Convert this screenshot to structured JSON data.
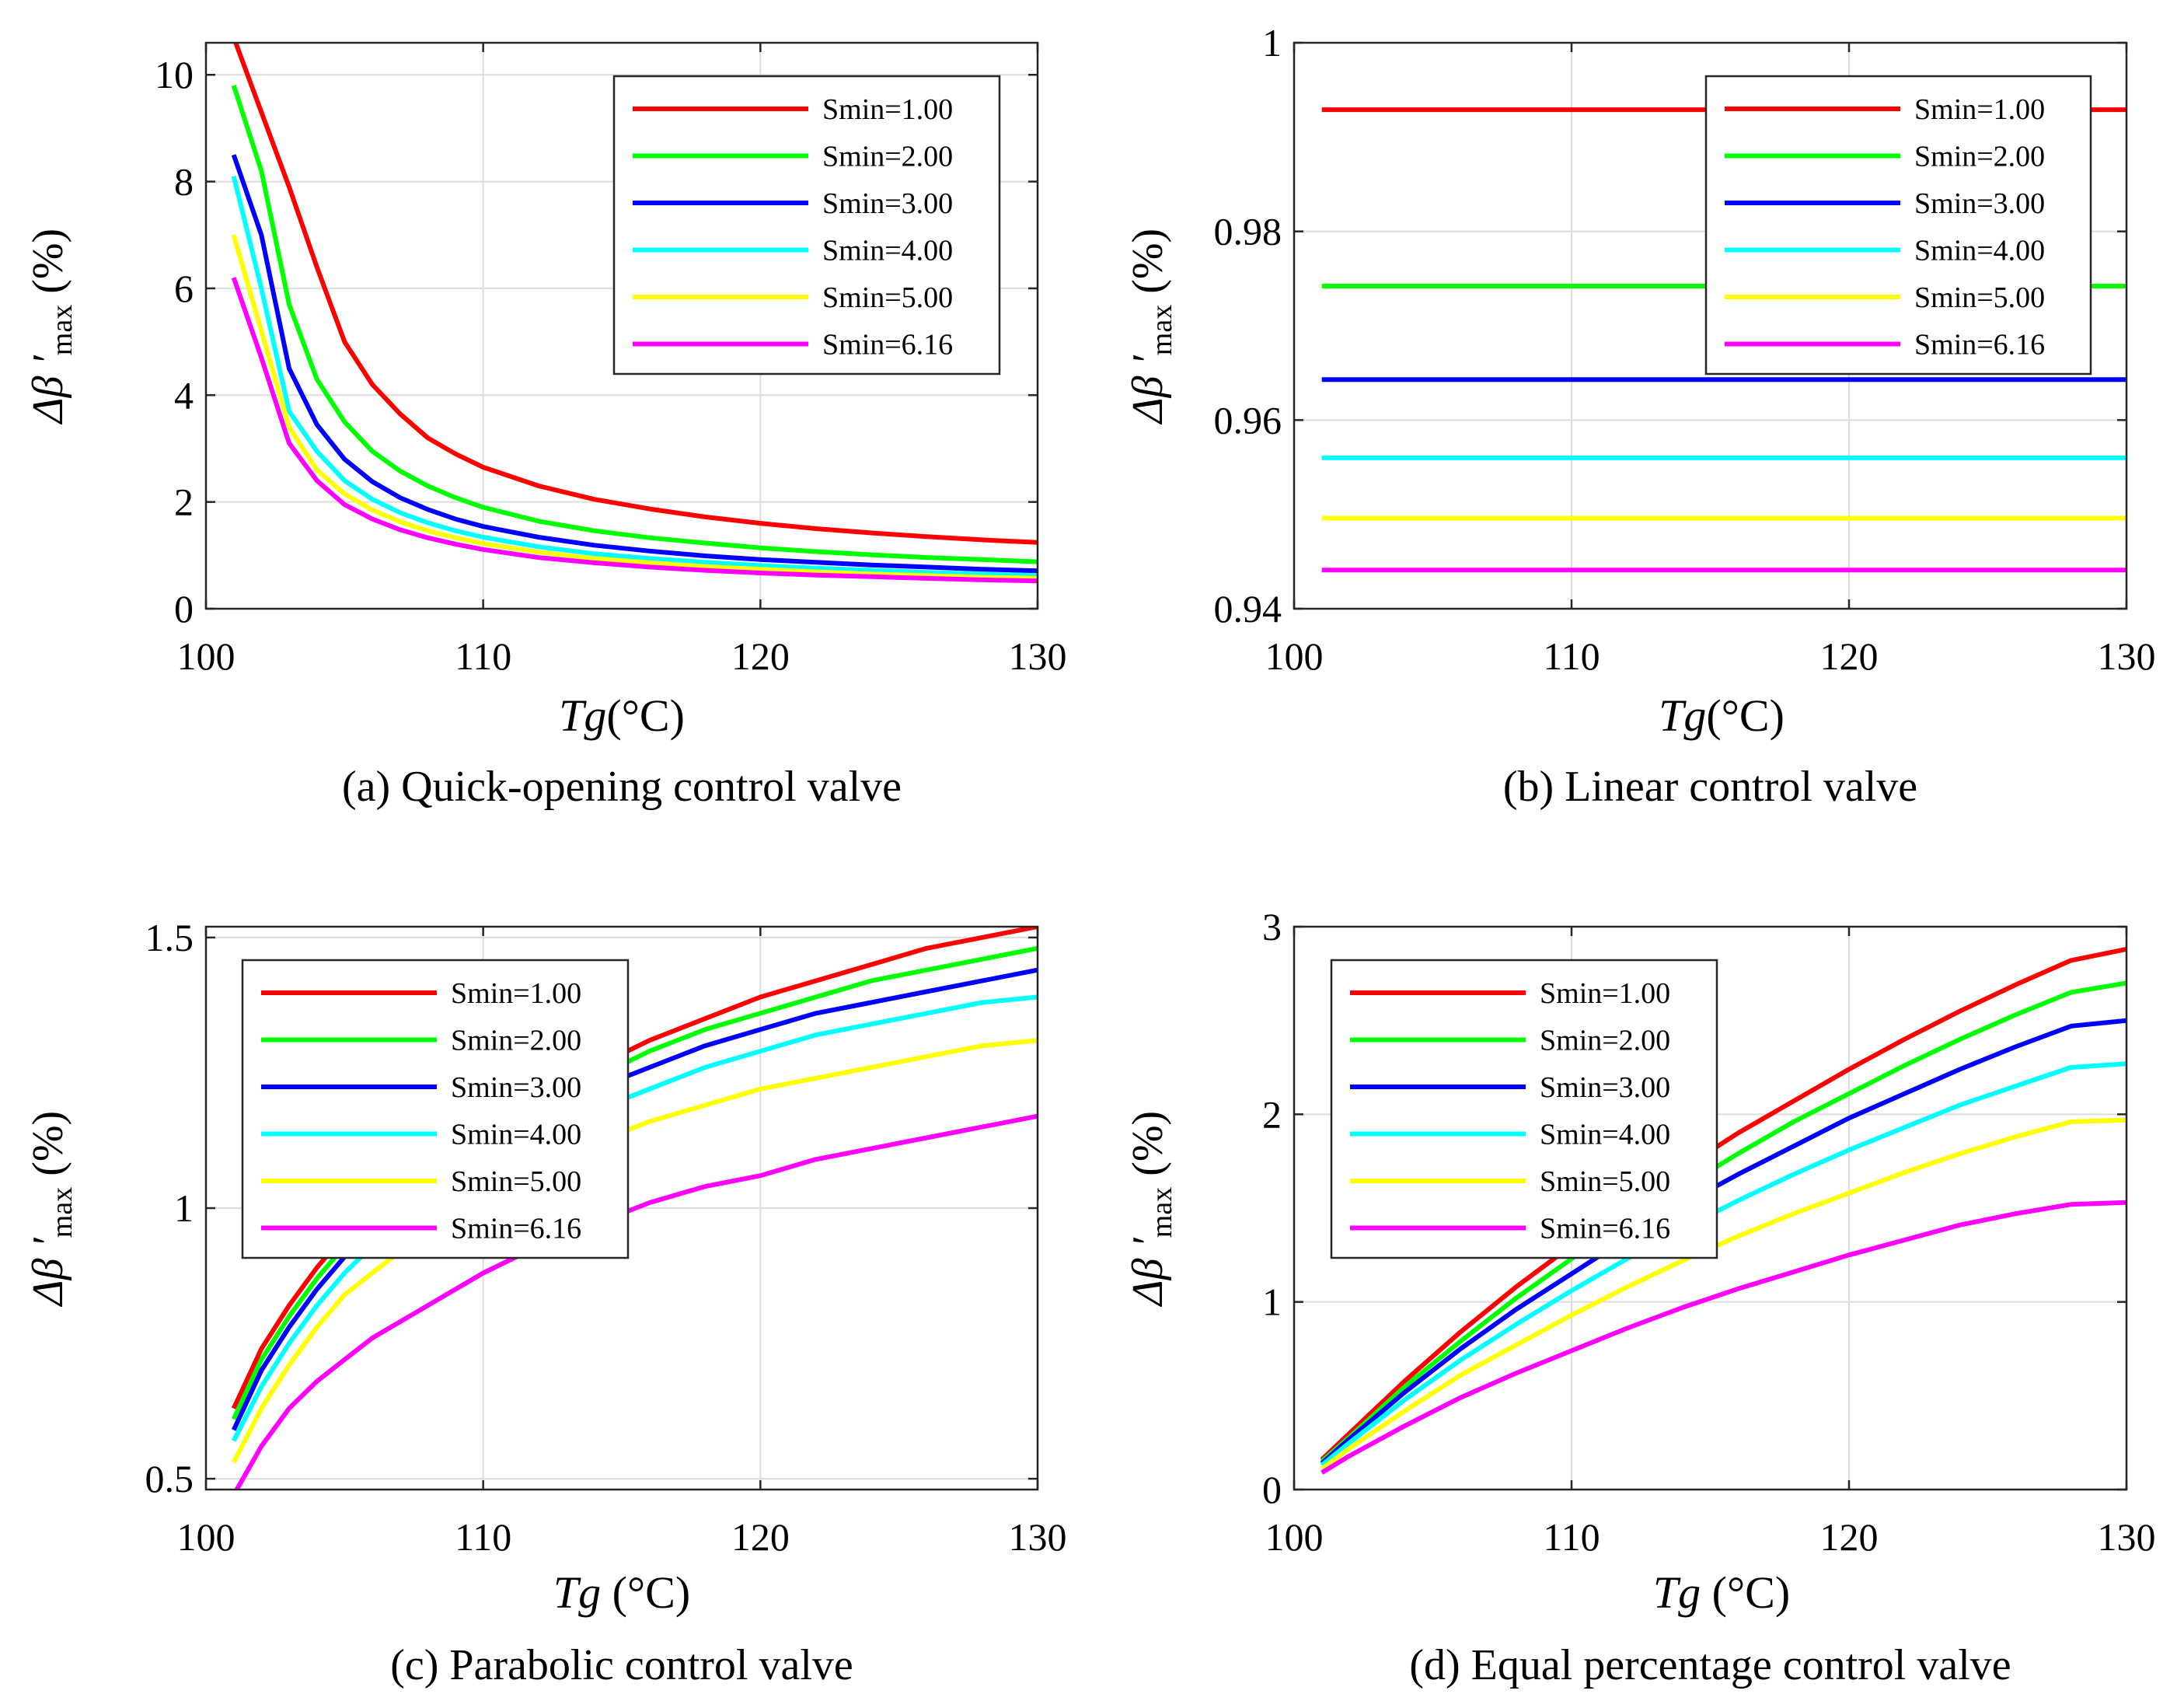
{
  "chart_data": [
    {
      "id": "a",
      "type": "line",
      "caption": "(a) Quick-opening control valve",
      "xlabel_var": "Tg",
      "xlabel_unit": "(°C)",
      "ylabel_main": "Δβ ′",
      "ylabel_sub": "max",
      "ylabel_unit": "(%)",
      "xlim": [
        100,
        130
      ],
      "ylim": [
        0,
        10.6
      ],
      "xticks": [
        100,
        110,
        120,
        130
      ],
      "yticks": [
        0,
        2,
        4,
        6,
        8,
        10
      ],
      "ytick_labels": [
        "0",
        "2",
        "4",
        "6",
        "8",
        "10"
      ],
      "grid": true,
      "legend_position": "top-right",
      "x": [
        101,
        102,
        103,
        104,
        105,
        106,
        107,
        108,
        109,
        110,
        112,
        114,
        116,
        118,
        120,
        122,
        124,
        126,
        128,
        130
      ],
      "series": [
        {
          "name": "Smin=1.00",
          "color": "#ff0000",
          "values": [
            10.7,
            9.3,
            7.9,
            6.4,
            5.0,
            4.2,
            3.65,
            3.2,
            2.9,
            2.65,
            2.3,
            2.05,
            1.87,
            1.72,
            1.6,
            1.5,
            1.42,
            1.35,
            1.29,
            1.24
          ]
        },
        {
          "name": "Smin=2.00",
          "color": "#00ff00",
          "values": [
            9.8,
            8.2,
            5.7,
            4.3,
            3.5,
            2.95,
            2.58,
            2.3,
            2.08,
            1.9,
            1.64,
            1.46,
            1.33,
            1.23,
            1.14,
            1.07,
            1.01,
            0.96,
            0.92,
            0.88
          ]
        },
        {
          "name": "Smin=3.00",
          "color": "#0000ff",
          "values": [
            8.5,
            7.0,
            4.5,
            3.45,
            2.8,
            2.38,
            2.08,
            1.86,
            1.68,
            1.54,
            1.34,
            1.19,
            1.08,
            0.99,
            0.92,
            0.87,
            0.82,
            0.78,
            0.74,
            0.71
          ]
        },
        {
          "name": "Smin=4.00",
          "color": "#00ffff",
          "values": [
            8.1,
            6.0,
            3.7,
            2.95,
            2.4,
            2.05,
            1.8,
            1.61,
            1.46,
            1.34,
            1.16,
            1.03,
            0.94,
            0.87,
            0.81,
            0.76,
            0.72,
            0.68,
            0.65,
            0.62
          ]
        },
        {
          "name": "Smin=5.00",
          "color": "#ffff00",
          "values": [
            7.0,
            5.2,
            3.4,
            2.6,
            2.15,
            1.85,
            1.63,
            1.46,
            1.33,
            1.22,
            1.06,
            0.94,
            0.86,
            0.79,
            0.74,
            0.69,
            0.65,
            0.62,
            0.59,
            0.57
          ]
        },
        {
          "name": "Smin=6.16",
          "color": "#ff00ff",
          "values": [
            6.2,
            4.7,
            3.1,
            2.4,
            1.95,
            1.68,
            1.48,
            1.33,
            1.21,
            1.11,
            0.96,
            0.86,
            0.78,
            0.72,
            0.67,
            0.63,
            0.6,
            0.57,
            0.54,
            0.52
          ]
        }
      ]
    },
    {
      "id": "b",
      "type": "line",
      "caption": "(b) Linear control valve",
      "xlabel_var": "Tg",
      "xlabel_unit": "(°C)",
      "ylabel_main": "Δβ ′",
      "ylabel_sub": "max",
      "ylabel_unit": "(%)",
      "xlim": [
        100,
        130
      ],
      "ylim": [
        0.94,
        1.0
      ],
      "xticks": [
        100,
        110,
        120,
        130
      ],
      "yticks": [
        0.94,
        0.96,
        0.98,
        1.0
      ],
      "ytick_labels": [
        "0.94",
        "0.96",
        "0.98",
        "1"
      ],
      "grid": true,
      "legend_position": "top-right",
      "x": [
        101,
        130
      ],
      "series": [
        {
          "name": "Smin=1.00",
          "color": "#ff0000",
          "values": [
            0.9929,
            0.9929
          ]
        },
        {
          "name": "Smin=2.00",
          "color": "#00ff00",
          "values": [
            0.9742,
            0.9742
          ]
        },
        {
          "name": "Smin=3.00",
          "color": "#0000ff",
          "values": [
            0.9643,
            0.9643
          ]
        },
        {
          "name": "Smin=4.00",
          "color": "#00ffff",
          "values": [
            0.956,
            0.956
          ]
        },
        {
          "name": "Smin=5.00",
          "color": "#ffff00",
          "values": [
            0.9496,
            0.9496
          ]
        },
        {
          "name": "Smin=6.16",
          "color": "#ff00ff",
          "values": [
            0.9441,
            0.9441
          ]
        }
      ]
    },
    {
      "id": "c",
      "type": "line",
      "caption": "(c) Parabolic control valve",
      "xlabel_var": "Tg",
      "xlabel_unit": " (°C)",
      "ylabel_main": "Δβ ′",
      "ylabel_sub": "max",
      "ylabel_unit": "(%)",
      "xlim": [
        100,
        130
      ],
      "ylim": [
        0.48,
        1.52
      ],
      "xticks": [
        100,
        110,
        120,
        130
      ],
      "yticks": [
        0.5,
        1.0,
        1.5
      ],
      "ytick_labels": [
        "0.5",
        "1",
        "1.5"
      ],
      "grid": true,
      "legend_position": "top-left",
      "x": [
        101,
        102,
        103,
        104,
        105,
        106,
        107,
        108,
        110,
        112,
        114,
        116,
        118,
        120,
        122,
        124,
        126,
        128,
        130
      ],
      "series": [
        {
          "name": "Smin=1.00",
          "color": "#ff0000",
          "values": [
            0.63,
            0.74,
            0.82,
            0.89,
            0.95,
            1.0,
            1.04,
            1.08,
            1.15,
            1.21,
            1.26,
            1.31,
            1.35,
            1.39,
            1.42,
            1.45,
            1.48,
            1.5,
            1.52
          ]
        },
        {
          "name": "Smin=2.00",
          "color": "#00ff00",
          "values": [
            0.61,
            0.72,
            0.8,
            0.87,
            0.93,
            0.98,
            1.02,
            1.06,
            1.13,
            1.19,
            1.24,
            1.29,
            1.33,
            1.36,
            1.39,
            1.42,
            1.44,
            1.46,
            1.48
          ]
        },
        {
          "name": "Smin=3.00",
          "color": "#0000ff",
          "values": [
            0.59,
            0.7,
            0.78,
            0.85,
            0.91,
            0.96,
            1.0,
            1.04,
            1.11,
            1.17,
            1.22,
            1.26,
            1.3,
            1.33,
            1.36,
            1.38,
            1.4,
            1.42,
            1.44
          ]
        },
        {
          "name": "Smin=4.00",
          "color": "#00ffff",
          "values": [
            0.57,
            0.67,
            0.75,
            0.82,
            0.88,
            0.93,
            0.97,
            1.01,
            1.08,
            1.13,
            1.18,
            1.22,
            1.26,
            1.29,
            1.32,
            1.34,
            1.36,
            1.38,
            1.39
          ]
        },
        {
          "name": "Smin=5.00",
          "color": "#ffff00",
          "values": [
            0.53,
            0.63,
            0.71,
            0.78,
            0.84,
            0.88,
            0.92,
            0.96,
            1.03,
            1.08,
            1.12,
            1.16,
            1.19,
            1.22,
            1.24,
            1.26,
            1.28,
            1.3,
            1.31
          ]
        },
        {
          "name": "Smin=6.16",
          "color": "#ff00ff",
          "values": [
            0.47,
            0.56,
            0.63,
            0.68,
            0.72,
            0.76,
            0.79,
            0.82,
            0.88,
            0.93,
            0.97,
            1.01,
            1.04,
            1.06,
            1.09,
            1.11,
            1.13,
            1.15,
            1.17
          ]
        }
      ]
    },
    {
      "id": "d",
      "type": "line",
      "caption": "(d) Equal percentage control valve",
      "xlabel_var": "Tg",
      "xlabel_unit": " (°C)",
      "ylabel_main": "Δβ ′",
      "ylabel_sub": "max",
      "ylabel_unit": "(%)",
      "xlim": [
        100,
        130
      ],
      "ylim": [
        0,
        3
      ],
      "xticks": [
        100,
        110,
        120,
        130
      ],
      "yticks": [
        0,
        1,
        2,
        3
      ],
      "ytick_labels": [
        "0",
        "1",
        "2",
        "3"
      ],
      "grid": true,
      "legend_position": "top-left",
      "x": [
        101,
        102,
        104,
        106,
        108,
        110,
        112,
        114,
        116,
        118,
        120,
        122,
        124,
        126,
        128,
        130
      ],
      "series": [
        {
          "name": "Smin=1.00",
          "color": "#ff0000",
          "values": [
            0.16,
            0.3,
            0.58,
            0.84,
            1.08,
            1.3,
            1.51,
            1.71,
            1.9,
            2.07,
            2.24,
            2.4,
            2.55,
            2.69,
            2.82,
            2.88
          ]
        },
        {
          "name": "Smin=2.00",
          "color": "#00ff00",
          "values": [
            0.15,
            0.28,
            0.55,
            0.79,
            1.02,
            1.23,
            1.43,
            1.61,
            1.79,
            1.96,
            2.11,
            2.26,
            2.4,
            2.53,
            2.65,
            2.7
          ]
        },
        {
          "name": "Smin=3.00",
          "color": "#0000ff",
          "values": [
            0.14,
            0.27,
            0.52,
            0.75,
            0.96,
            1.15,
            1.34,
            1.52,
            1.68,
            1.83,
            1.98,
            2.11,
            2.24,
            2.36,
            2.47,
            2.5
          ]
        },
        {
          "name": "Smin=4.00",
          "color": "#00ffff",
          "values": [
            0.13,
            0.25,
            0.48,
            0.69,
            0.88,
            1.06,
            1.23,
            1.39,
            1.54,
            1.68,
            1.81,
            1.93,
            2.05,
            2.15,
            2.25,
            2.27
          ]
        },
        {
          "name": "Smin=5.00",
          "color": "#ffff00",
          "values": [
            0.11,
            0.22,
            0.42,
            0.61,
            0.77,
            0.93,
            1.08,
            1.22,
            1.35,
            1.47,
            1.58,
            1.69,
            1.79,
            1.88,
            1.96,
            1.97
          ]
        },
        {
          "name": "Smin=6.16",
          "color": "#ff00ff",
          "values": [
            0.09,
            0.18,
            0.34,
            0.49,
            0.62,
            0.74,
            0.86,
            0.97,
            1.07,
            1.16,
            1.25,
            1.33,
            1.41,
            1.47,
            1.52,
            1.53
          ]
        }
      ]
    }
  ]
}
